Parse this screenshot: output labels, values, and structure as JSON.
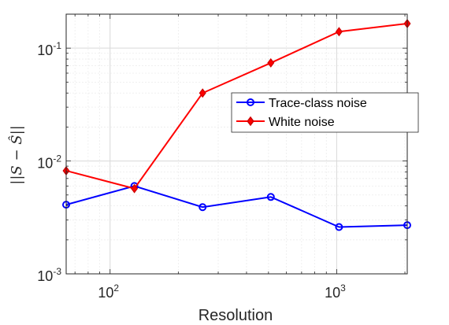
{
  "chart_data": {
    "type": "line",
    "xscale": "log",
    "yscale": "log",
    "xlim": [
      64,
      2048
    ],
    "ylim": [
      0.001,
      0.2
    ],
    "grid": true,
    "minor_grid": true,
    "legend_position": "center-right",
    "xlabel": "Resolution",
    "ylabel": "||S − Ŝ||",
    "xticks": [
      {
        "value": 100,
        "base": "10",
        "exp": "2"
      },
      {
        "value": 1000,
        "base": "10",
        "exp": "3"
      }
    ],
    "yticks": [
      {
        "value": 0.001,
        "base": "10",
        "exp": "-3"
      },
      {
        "value": 0.01,
        "base": "10",
        "exp": "-2"
      },
      {
        "value": 0.1,
        "base": "10",
        "exp": "-1"
      }
    ],
    "series": [
      {
        "name": "Trace-class noise",
        "color": "#0000ff",
        "marker": "circle",
        "x": [
          64,
          128,
          256,
          512,
          1024,
          2048
        ],
        "y": [
          0.0041,
          0.006,
          0.0039,
          0.0048,
          0.0026,
          0.0027
        ]
      },
      {
        "name": "White noise",
        "color": "#ff0000",
        "marker": "diamond",
        "x": [
          64,
          128,
          256,
          512,
          1024,
          2048
        ],
        "y": [
          0.0082,
          0.0057,
          0.04,
          0.074,
          0.14,
          0.165
        ]
      }
    ]
  }
}
